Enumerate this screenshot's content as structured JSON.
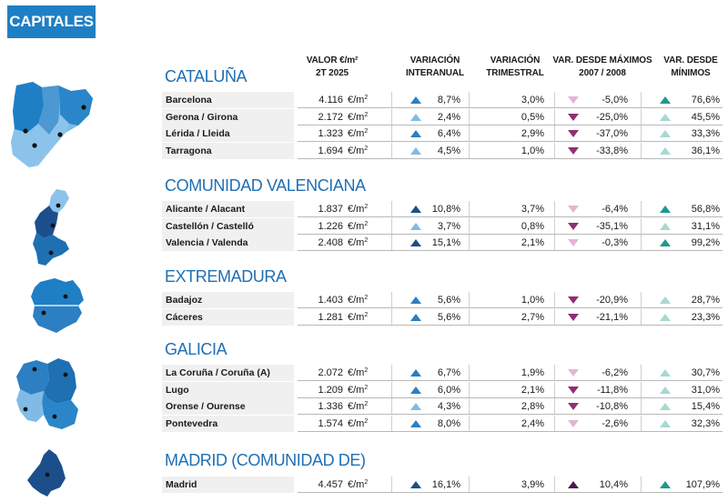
{
  "tag_label": "CAPITALES",
  "headers": {
    "valor_l1": "VALOR €/m²",
    "valor_l2": "2T 2025",
    "interanual_l1": "VARIACIÓN",
    "interanual_l2": "INTERANUAL",
    "trimestral_l1": "VARIACIÓN",
    "trimestral_l2": "TRIMESTRAL",
    "maximos_l1": "VAR. DESDE MÁXIMOS",
    "maximos_l2": "2007 / 2008",
    "minimos_l1": "VAR. DESDE",
    "minimos_l2": "MÍNIMOS"
  },
  "unit_label": "€/m",
  "unit_sup": "2",
  "colors": {
    "brand": "#1f7fc4",
    "region_title": "#1f6fb3",
    "up_dark": "#1d4e8c",
    "up_mid": "#2b7fc2",
    "up_light": "#7fbbe6",
    "down_dark": "#8e2f74",
    "down_light": "#e3b5d2",
    "teal_dark": "#1c9a8c",
    "teal_light": "#a7d8d2",
    "purple_dark": "#4a1a4f"
  },
  "regions": [
    {
      "title": "CATALUÑA",
      "map_icon": "cataluna-map-icon",
      "rows": [
        {
          "name": "Barcelona",
          "valor": "4.116",
          "interanual": "8,7%",
          "ia_icon": "up_mid",
          "trimestral": "3,0%",
          "maximos": "-5,0%",
          "mx_icon": "down_light",
          "minimos": "76,6%",
          "mn_icon": "teal_dark"
        },
        {
          "name": "Gerona / Girona",
          "valor": "2.172",
          "interanual": "2,4%",
          "ia_icon": "up_light",
          "trimestral": "0,5%",
          "maximos": "-25,0%",
          "mx_icon": "down_dark",
          "minimos": "45,5%",
          "mn_icon": "teal_light"
        },
        {
          "name": "Lérida / Lleida",
          "valor": "1.323",
          "interanual": "6,4%",
          "ia_icon": "up_mid",
          "trimestral": "2,9%",
          "maximos": "-37,0%",
          "mx_icon": "down_dark",
          "minimos": "33,3%",
          "mn_icon": "teal_light"
        },
        {
          "name": "Tarragona",
          "valor": "1.694",
          "interanual": "4,5%",
          "ia_icon": "up_light",
          "trimestral": "1,0%",
          "maximos": "-33,8%",
          "mx_icon": "down_dark",
          "minimos": "36,1%",
          "mn_icon": "teal_light"
        }
      ]
    },
    {
      "title": "COMUNIDAD VALENCIANA",
      "map_icon": "comunidad-valenciana-map-icon",
      "rows": [
        {
          "name": "Alicante / Alacant",
          "valor": "1.837",
          "interanual": "10,8%",
          "ia_icon": "up_dark",
          "trimestral": "3,7%",
          "maximos": "-6,4%",
          "mx_icon": "down_light",
          "minimos": "56,8%",
          "mn_icon": "teal_dark"
        },
        {
          "name": "Castellón / Castelló",
          "valor": "1.226",
          "interanual": "3,7%",
          "ia_icon": "up_light",
          "trimestral": "0,8%",
          "maximos": "-35,1%",
          "mx_icon": "down_dark",
          "minimos": "31,1%",
          "mn_icon": "teal_light"
        },
        {
          "name": "Valencia / Valenda",
          "valor": "2.408",
          "interanual": "15,1%",
          "ia_icon": "up_dark",
          "trimestral": "2,1%",
          "maximos": "-0,3%",
          "mx_icon": "down_light",
          "minimos": "99,2%",
          "mn_icon": "teal_dark"
        }
      ]
    },
    {
      "title": "EXTREMADURA",
      "map_icon": "extremadura-map-icon",
      "rows": [
        {
          "name": "Badajoz",
          "valor": "1.403",
          "interanual": "5,6%",
          "ia_icon": "up_mid",
          "trimestral": "1,0%",
          "maximos": "-20,9%",
          "mx_icon": "down_dark",
          "minimos": "28,7%",
          "mn_icon": "teal_light"
        },
        {
          "name": "Cáceres",
          "valor": "1.281",
          "interanual": "5,6%",
          "ia_icon": "up_mid",
          "trimestral": "2,7%",
          "maximos": "-21,1%",
          "mx_icon": "down_dark",
          "minimos": "23,3%",
          "mn_icon": "teal_light"
        }
      ]
    },
    {
      "title": "GALICIA",
      "map_icon": "galicia-map-icon",
      "rows": [
        {
          "name": "La Coruña / Coruña (A)",
          "valor": "2.072",
          "interanual": "6,7%",
          "ia_icon": "up_mid",
          "trimestral": "1,9%",
          "maximos": "-6,2%",
          "mx_icon": "down_light",
          "minimos": "30,7%",
          "mn_icon": "teal_light"
        },
        {
          "name": "Lugo",
          "valor": "1.209",
          "interanual": "6,0%",
          "ia_icon": "up_mid",
          "trimestral": "2,1%",
          "maximos": "-11,8%",
          "mx_icon": "down_dark",
          "minimos": "31,0%",
          "mn_icon": "teal_light"
        },
        {
          "name": "Orense / Ourense",
          "valor": "1.336",
          "interanual": "4,3%",
          "ia_icon": "up_light",
          "trimestral": "2,8%",
          "maximos": "-10,8%",
          "mx_icon": "down_dark",
          "minimos": "15,4%",
          "mn_icon": "teal_light"
        },
        {
          "name": "Pontevedra",
          "valor": "1.574",
          "interanual": "8,0%",
          "ia_icon": "up_mid",
          "trimestral": "2,4%",
          "maximos": "-2,6%",
          "mx_icon": "down_light",
          "minimos": "32,3%",
          "mn_icon": "teal_light"
        }
      ]
    },
    {
      "title": "MADRID (COMUNIDAD DE)",
      "map_icon": "madrid-map-icon",
      "rows": [
        {
          "name": "Madrid",
          "valor": "4.457",
          "interanual": "16,1%",
          "ia_icon": "up_dark",
          "trimestral": "3,9%",
          "maximos": "10,4%",
          "mx_icon": "purple_dark",
          "minimos": "107,9%",
          "mn_icon": "teal_dark"
        }
      ]
    }
  ]
}
